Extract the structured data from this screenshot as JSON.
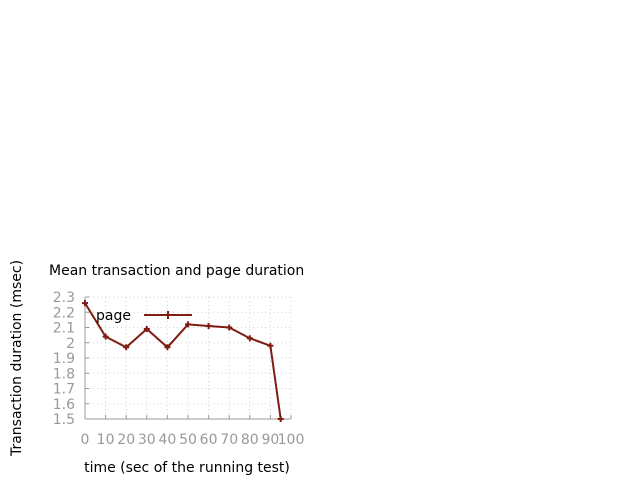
{
  "chart_data": {
    "type": "line",
    "title": "Mean transaction and page duration",
    "xlabel": "time (sec of the running test)",
    "ylabel": "Transaction duration (msec)",
    "xlim": [
      0,
      100
    ],
    "ylim": [
      1.5,
      2.3
    ],
    "x_ticks": [
      "0",
      "10",
      "20",
      "30",
      "40",
      "50",
      "60",
      "70",
      "80",
      "90",
      "100"
    ],
    "y_ticks": [
      "1.5",
      "1.6",
      "1.7",
      "1.8",
      "1.9",
      "2",
      "2.1",
      "2.2",
      "2.3"
    ],
    "grid": true,
    "legend": "top-left",
    "series": [
      {
        "name": "page",
        "color": "#7f1d10",
        "x": [
          0,
          10,
          20,
          30,
          40,
          50,
          60,
          70,
          80,
          90,
          95
        ],
        "values": [
          2.26,
          2.04,
          1.97,
          2.09,
          1.97,
          2.12,
          2.11,
          2.1,
          2.03,
          1.98,
          1.5
        ]
      }
    ]
  }
}
